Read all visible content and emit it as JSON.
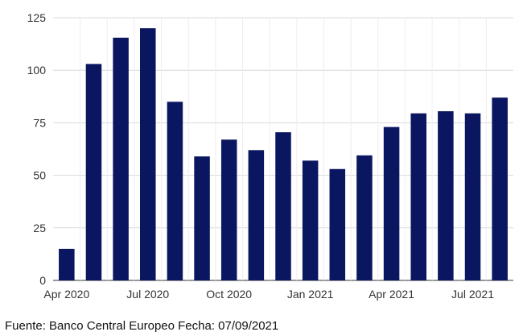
{
  "chart_data": {
    "type": "bar",
    "categories": [
      "Apr 2020",
      "May 2020",
      "Jun 2020",
      "Jul 2020",
      "Aug 2020",
      "Sep 2020",
      "Oct 2020",
      "Nov 2020",
      "Dec 2020",
      "Jan 2021",
      "Feb 2021",
      "Mar 2021",
      "Apr 2021",
      "May 2021",
      "Jun 2021",
      "Jul 2021",
      "Aug 2021"
    ],
    "values": [
      15,
      103,
      115.5,
      120,
      85,
      59,
      67,
      62,
      70.5,
      57,
      53,
      59.5,
      73,
      79.5,
      80.5,
      79.5,
      87
    ],
    "x_tick_labels": [
      {
        "category_index": 0,
        "label": "Apr 2020"
      },
      {
        "category_index": 3,
        "label": "Jul 2020"
      },
      {
        "category_index": 6,
        "label": "Oct 2020"
      },
      {
        "category_index": 9,
        "label": "Jan 2021"
      },
      {
        "category_index": 12,
        "label": "Apr 2021"
      },
      {
        "category_index": 15,
        "label": "Jul 2021"
      }
    ],
    "y_ticks": [
      0,
      25,
      50,
      75,
      100,
      125
    ],
    "ylim": [
      0,
      125
    ],
    "title": "",
    "xlabel": "",
    "ylabel": "",
    "grid": true,
    "legend": "none",
    "bar_color": "#0a1760",
    "grid_color": "#d9d9d9"
  },
  "source_note": "Fuente: Banco Central Europeo Fecha: 07/09/2021"
}
